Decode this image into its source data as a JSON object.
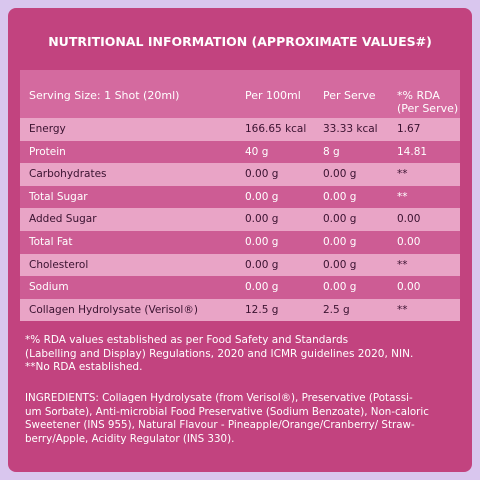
{
  "title": "NUTRITIONAL INFORMATION (APPROXIMATE VALUES#)",
  "table": {
    "header": [
      "Serving Size: 1 Shot (20ml)",
      "Per 100ml",
      "Per Serve",
      "*% RDA\n(Per Serve)"
    ],
    "rows": [
      [
        "Energy",
        "166.65 kcal",
        "33.33 kcal",
        "1.67"
      ],
      [
        "Protein",
        "40 g",
        "8 g",
        "14.81"
      ],
      [
        "Carbohydrates",
        "0.00 g",
        "0.00 g",
        "**"
      ],
      [
        "Total Sugar",
        "0.00 g",
        "0.00 g",
        "**"
      ],
      [
        "Added Sugar",
        "0.00 g",
        "0.00 g",
        "0.00"
      ],
      [
        "Total Fat",
        "0.00 g",
        "0.00 g",
        "0.00"
      ],
      [
        "Cholesterol",
        "0.00 g",
        "0.00 g",
        "**"
      ],
      [
        "Sodium",
        "0.00 g",
        "0.00 g",
        "0.00"
      ],
      [
        "Collagen Hydrolysate (Verisol®)",
        "12.5 g",
        "2.5 g",
        "**"
      ]
    ]
  },
  "footnotes": [
    "*% RDA values established as per Food Safety and Standards",
    "(Labelling and Display) Regulations, 2020 and ICMR guidelines 2020, NIN.",
    "**No RDA established."
  ],
  "ingredients": [
    "INGREDIENTS: Collagen Hydrolysate (from Verisol®), Preservative (Potassi-",
    "um Sorbate), Anti-microbial Food Preservative (Sodium Benzoate), Non-caloric",
    "Sweetener (INS 955), Natural Flavour - Pineapple/Orange/Cranberry/ Straw-",
    "berry/Apple, Acidity Regulator (INS 330)."
  ]
}
